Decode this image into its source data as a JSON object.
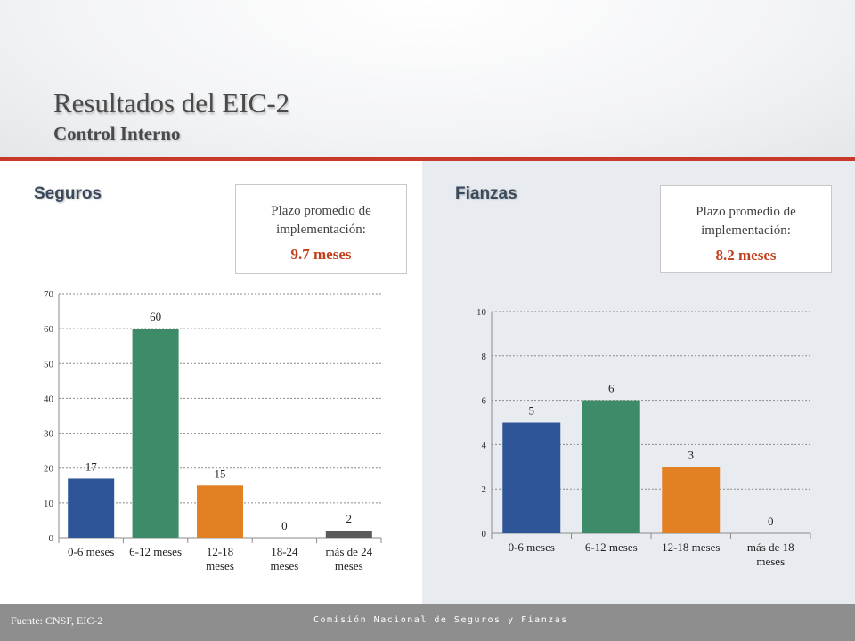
{
  "header": {
    "title": "Resultados del EIC-2",
    "subtitle": "Control Interno"
  },
  "left": {
    "section": "Seguros",
    "box": {
      "label": "Plazo promedio de implementación:",
      "value": "9.7 meses"
    }
  },
  "right": {
    "section": "Fianzas",
    "box": {
      "label": "Plazo promedio de implementación:",
      "value": "8.2 meses"
    }
  },
  "chart_data": [
    {
      "type": "bar",
      "categories": [
        "0-6 meses",
        "6-12 meses",
        "12-18 meses",
        "18-24 meses",
        "más de 24 meses"
      ],
      "values": [
        17,
        60,
        15,
        0,
        2
      ],
      "colors": [
        "#2e5597",
        "#3e8b6a",
        "#e48024",
        "#7a7a7a",
        "#5a5a5a"
      ],
      "ylim": [
        0,
        70
      ],
      "yticks": [
        0,
        10,
        20,
        30,
        40,
        50,
        60,
        70
      ],
      "grid": true,
      "xlabel": "",
      "ylabel": ""
    },
    {
      "type": "bar",
      "categories": [
        "0-6 meses",
        "6-12 meses",
        "12-18 meses",
        "más de 18 meses"
      ],
      "values": [
        5,
        6,
        3,
        0
      ],
      "colors": [
        "#2e5597",
        "#3e8b6a",
        "#e48024",
        "#7a7a7a"
      ],
      "ylim": [
        0,
        10
      ],
      "yticks": [
        0,
        2,
        4,
        6,
        8,
        10
      ],
      "grid": true,
      "xlabel": "",
      "ylabel": ""
    }
  ],
  "footer": {
    "source": "Fuente: CNSF, EIC-2",
    "organization": "Comisión Nacional de Seguros y Fianzas"
  }
}
